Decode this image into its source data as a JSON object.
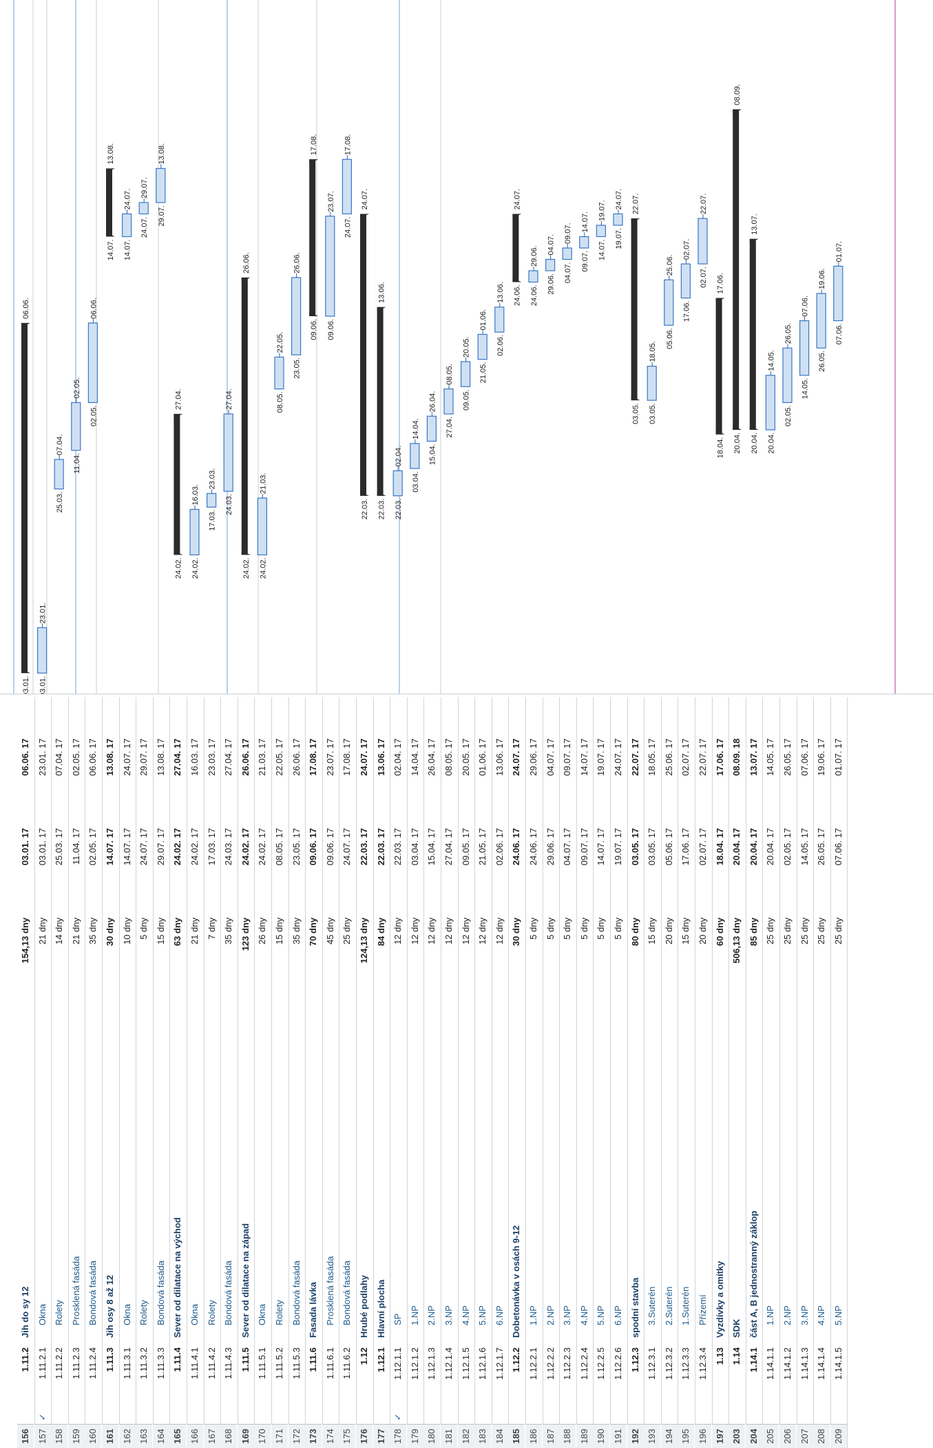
{
  "rows": [
    {
      "id": "156",
      "wbs": "1.11.2",
      "name": "Jih do sy 12",
      "dur": "154,13 dny",
      "start": "03.01. 17",
      "end": "06.06. 17",
      "bold": true,
      "bar_start": "03.01.",
      "bar_end": "06.06."
    },
    {
      "id": "157",
      "wbs": "1.11.2.1",
      "name": "Okna",
      "dur": "21 dny",
      "start": "03.01. 17",
      "end": "23.01. 17",
      "bold": false,
      "bar_start": "03.01.",
      "bar_end": "23.01.",
      "check": "✓"
    },
    {
      "id": "158",
      "wbs": "1.11.2.2",
      "name": "Rolety",
      "dur": "14 dny",
      "start": "25.03. 17",
      "end": "07.04. 17",
      "bold": false,
      "bar_start": "25.03.",
      "bar_end": "07.04."
    },
    {
      "id": "159",
      "wbs": "1.11.2.3",
      "name": "Prosklená fasáda",
      "dur": "21 dny",
      "start": "11.04. 17",
      "end": "02.05. 17",
      "bold": false,
      "bar_start": "11.04.",
      "bar_end": "02.05."
    },
    {
      "id": "160",
      "wbs": "1.11.2.4",
      "name": "Bondová fasáda",
      "dur": "35 dny",
      "start": "02.05. 17",
      "end": "06.06. 17",
      "bold": false,
      "bar_start": "02.05.",
      "bar_end": "06.06."
    },
    {
      "id": "161",
      "wbs": "1.11.3",
      "name": "Jih osy 8 až 12",
      "dur": "30 dny",
      "start": "14.07. 17",
      "end": "13.08. 17",
      "bold": true,
      "bar_start": "14.07.",
      "bar_end": "13.08."
    },
    {
      "id": "162",
      "wbs": "1.11.3.1",
      "name": "Okna",
      "dur": "10 dny",
      "start": "14.07. 17",
      "end": "24.07. 17",
      "bold": false,
      "bar_start": "14.07.",
      "bar_end": "24.07."
    },
    {
      "id": "163",
      "wbs": "1.11.3.2",
      "name": "Rolety",
      "dur": "5 dny",
      "start": "24.07. 17",
      "end": "29.07. 17",
      "bold": false,
      "bar_start": "24.07.",
      "bar_end": "29.07."
    },
    {
      "id": "164",
      "wbs": "1.11.3.3",
      "name": "Bondová fasáda",
      "dur": "15 dny",
      "start": "29.07. 17",
      "end": "13.08. 17",
      "bold": false,
      "bar_start": "29.07.",
      "bar_end": "13.08."
    },
    {
      "id": "165",
      "wbs": "1.11.4",
      "name": "Sever od dilatace na východ",
      "dur": "63 dny",
      "start": "24.02. 17",
      "end": "27.04. 17",
      "bold": true,
      "bar_start": "24.02.",
      "bar_end": "27.04."
    },
    {
      "id": "166",
      "wbs": "1.11.4.1",
      "name": "Okna",
      "dur": "21 dny",
      "start": "24.02. 17",
      "end": "16.03. 17",
      "bold": false,
      "bar_start": "24.02.",
      "bar_end": "16.03."
    },
    {
      "id": "167",
      "wbs": "1.11.4.2",
      "name": "Rolety",
      "dur": "7 dny",
      "start": "17.03. 17",
      "end": "23.03. 17",
      "bold": false,
      "bar_start": "17.03.",
      "bar_end": "23.03."
    },
    {
      "id": "168",
      "wbs": "1.11.4.3",
      "name": "Bondová fasáda",
      "dur": "35 dny",
      "start": "24.03. 17",
      "end": "27.04. 17",
      "bold": false,
      "bar_start": "24.03.",
      "bar_end": "27.04."
    },
    {
      "id": "169",
      "wbs": "1.11.5",
      "name": "Sever od dilatace na západ",
      "dur": "123 dny",
      "start": "24.02. 17",
      "end": "26.06. 17",
      "bold": true,
      "bar_start": "24.02.",
      "bar_end": "26.06."
    },
    {
      "id": "170",
      "wbs": "1.11.5.1",
      "name": "Okna",
      "dur": "26 dny",
      "start": "24.02. 17",
      "end": "21.03. 17",
      "bold": false,
      "bar_start": "24.02.",
      "bar_end": "21.03."
    },
    {
      "id": "171",
      "wbs": "1.11.5.2",
      "name": "Rolety",
      "dur": "15 dny",
      "start": "08.05. 17",
      "end": "22.05. 17",
      "bold": false,
      "bar_start": "08.05.",
      "bar_end": "22.05."
    },
    {
      "id": "172",
      "wbs": "1.11.5.3",
      "name": "Bondová fasáda",
      "dur": "35 dny",
      "start": "23.05. 17",
      "end": "26.06. 17",
      "bold": false,
      "bar_start": "23.05.",
      "bar_end": "26.06."
    },
    {
      "id": "173",
      "wbs": "1.11.6",
      "name": "Fasada lávka",
      "dur": "70 dny",
      "start": "09.06. 17",
      "end": "17.08. 17",
      "bold": true,
      "bar_start": "09.06.",
      "bar_end": "17.08."
    },
    {
      "id": "174",
      "wbs": "1.11.6.1",
      "name": "Prosklená fasáda",
      "dur": "45 dny",
      "start": "09.06. 17",
      "end": "23.07. 17",
      "bold": false,
      "bar_start": "09.06.",
      "bar_end": "23.07."
    },
    {
      "id": "175",
      "wbs": "1.11.6.2",
      "name": "Bondová fasáda",
      "dur": "25 dny",
      "start": "24.07. 17",
      "end": "17.08. 17",
      "bold": false,
      "bar_start": "24.07.",
      "bar_end": "17.08."
    },
    {
      "id": "176",
      "wbs": "1.12",
      "name": "Hrubé podlahy",
      "dur": "124,13 dny",
      "start": "22.03. 17",
      "end": "24.07. 17",
      "bold": true,
      "bar_start": "22.03.",
      "bar_end": "24.07."
    },
    {
      "id": "177",
      "wbs": "1.12.1",
      "name": "Hlavní plocha",
      "dur": "84 dny",
      "start": "22.03. 17",
      "end": "13.06. 17",
      "bold": true,
      "bar_start": "22.03.",
      "bar_end": "13.06."
    },
    {
      "id": "178",
      "wbs": "1.12.1.1",
      "name": "SP",
      "dur": "12 dny",
      "start": "22.03. 17",
      "end": "02.04. 17",
      "bold": false,
      "bar_start": "22.03.",
      "bar_end": "02.04.",
      "check": "✓"
    },
    {
      "id": "179",
      "wbs": "1.12.1.2",
      "name": "1.NP",
      "dur": "12 dny",
      "start": "03.04. 17",
      "end": "14.04. 17",
      "bold": false,
      "bar_start": "03.04.",
      "bar_end": "14.04."
    },
    {
      "id": "180",
      "wbs": "1.12.1.3",
      "name": "2.NP",
      "dur": "12 dny",
      "start": "15.04. 17",
      "end": "26.04. 17",
      "bold": false,
      "bar_start": "15.04.",
      "bar_end": "26.04."
    },
    {
      "id": "181",
      "wbs": "1.12.1.4",
      "name": "3.NP",
      "dur": "12 dny",
      "start": "27.04. 17",
      "end": "08.05. 17",
      "bold": false,
      "bar_start": "27.04.",
      "bar_end": "08.05."
    },
    {
      "id": "182",
      "wbs": "1.12.1.5",
      "name": "4.NP",
      "dur": "12 dny",
      "start": "09.05. 17",
      "end": "20.05. 17",
      "bold": false,
      "bar_start": "09.05.",
      "bar_end": "20.05."
    },
    {
      "id": "183",
      "wbs": "1.12.1.6",
      "name": "5.NP",
      "dur": "12 dny",
      "start": "21.05. 17",
      "end": "01.06. 17",
      "bold": false,
      "bar_start": "21.05.",
      "bar_end": "01.06."
    },
    {
      "id": "184",
      "wbs": "1.12.1.7",
      "name": "6.NP",
      "dur": "12 dny",
      "start": "02.06. 17",
      "end": "13.06. 17",
      "bold": false,
      "bar_start": "02.06.",
      "bar_end": "13.06."
    },
    {
      "id": "185",
      "wbs": "1.12.2",
      "name": "Dobetonávka v osách 9-12",
      "dur": "30 dny",
      "start": "24.06. 17",
      "end": "24.07. 17",
      "bold": true,
      "bar_start": "24.06.",
      "bar_end": "24.07."
    },
    {
      "id": "186",
      "wbs": "1.12.2.1",
      "name": "1.NP",
      "dur": "5 dny",
      "start": "24.06. 17",
      "end": "29.06. 17",
      "bold": false,
      "bar_start": "24.06.",
      "bar_end": "29.06."
    },
    {
      "id": "187",
      "wbs": "1.12.2.2",
      "name": "2.NP",
      "dur": "5 dny",
      "start": "29.06. 17",
      "end": "04.07. 17",
      "bold": false,
      "bar_start": "29.06.",
      "bar_end": "04.07."
    },
    {
      "id": "188",
      "wbs": "1.12.2.3",
      "name": "3.NP",
      "dur": "5 dny",
      "start": "04.07. 17",
      "end": "09.07. 17",
      "bold": false,
      "bar_start": "04.07.",
      "bar_end": "09.07."
    },
    {
      "id": "189",
      "wbs": "1.12.2.4",
      "name": "4.NP",
      "dur": "5 dny",
      "start": "09.07. 17",
      "end": "14.07. 17",
      "bold": false,
      "bar_start": "09.07.",
      "bar_end": "14.07."
    },
    {
      "id": "190",
      "wbs": "1.12.2.5",
      "name": "5.NP",
      "dur": "5 dny",
      "start": "14.07. 17",
      "end": "19.07. 17",
      "bold": false,
      "bar_start": "14.07.",
      "bar_end": "19.07."
    },
    {
      "id": "191",
      "wbs": "1.12.2.6",
      "name": "6.NP",
      "dur": "5 dny",
      "start": "19.07. 17",
      "end": "24.07. 17",
      "bold": false,
      "bar_start": "19.07.",
      "bar_end": "24.07."
    },
    {
      "id": "192",
      "wbs": "1.12.3",
      "name": "spodní stavba",
      "dur": "80 dny",
      "start": "03.05. 17",
      "end": "22.07. 17",
      "bold": true,
      "bar_start": "03.05.",
      "bar_end": "22.07."
    },
    {
      "id": "193",
      "wbs": "1.12.3.1",
      "name": "3.Suterén",
      "dur": "15 dny",
      "start": "03.05. 17",
      "end": "18.05. 17",
      "bold": false,
      "bar_start": "03.05.",
      "bar_end": "18.05."
    },
    {
      "id": "194",
      "wbs": "1.12.3.2",
      "name": "2.Suterén",
      "dur": "20 dny",
      "start": "05.06. 17",
      "end": "25.06. 17",
      "bold": false,
      "bar_start": "05.06.",
      "bar_end": "25.06."
    },
    {
      "id": "195",
      "wbs": "1.12.3.3",
      "name": "1.Suterén",
      "dur": "15 dny",
      "start": "17.06. 17",
      "end": "02.07. 17",
      "bold": false,
      "bar_start": "17.06.",
      "bar_end": "02.07."
    },
    {
      "id": "196",
      "wbs": "1.12.3.4",
      "name": "Přízemí",
      "dur": "20 dny",
      "start": "02.07. 17",
      "end": "22.07. 17",
      "bold": false,
      "bar_start": "02.07.",
      "bar_end": "22.07."
    },
    {
      "id": "197",
      "wbs": "1.13",
      "name": "Vyzdívky a omítky",
      "dur": "60 dny",
      "start": "18.04. 17",
      "end": "17.06. 17",
      "bold": true,
      "bar_start": "18.04.",
      "bar_end": "17.06."
    },
    {
      "id": "203",
      "wbs": "1.14",
      "name": "SDK",
      "dur": "506,13 dny",
      "start": "20.04. 17",
      "end": "08.09. 18",
      "bold": true,
      "bar_start": "20.04.",
      "bar_end": "08.09."
    },
    {
      "id": "204",
      "wbs": "1.14.1",
      "name": "část A, B jednostranný záklop",
      "dur": "85 dny",
      "start": "20.04. 17",
      "end": "13.07. 17",
      "bold": true,
      "bar_start": "20.04.",
      "bar_end": "13.07."
    },
    {
      "id": "205",
      "wbs": "1.14.1.1",
      "name": "1.NP",
      "dur": "25 dny",
      "start": "20.04. 17",
      "end": "14.05. 17",
      "bold": false,
      "bar_start": "20.04.",
      "bar_end": "14.05."
    },
    {
      "id": "206",
      "wbs": "1.14.1.2",
      "name": "2.NP",
      "dur": "25 dny",
      "start": "02.05. 17",
      "end": "26.05. 17",
      "bold": false,
      "bar_start": "02.05.",
      "bar_end": "26.05."
    },
    {
      "id": "207",
      "wbs": "1.14.1.3",
      "name": "3.NP",
      "dur": "25 dny",
      "start": "14.05. 17",
      "end": "07.06. 17",
      "bold": false,
      "bar_start": "14.05.",
      "bar_end": "07.06."
    },
    {
      "id": "208",
      "wbs": "1.14.1.4",
      "name": "4.NP",
      "dur": "25 dny",
      "start": "26.05. 17",
      "end": "19.06. 17",
      "bold": false,
      "bar_start": "26.05.",
      "bar_end": "19.06."
    },
    {
      "id": "209",
      "wbs": "1.14.1.5",
      "name": "5.NP",
      "dur": "25 dny",
      "start": "07.06. 17",
      "end": "01.07. 17",
      "bold": false,
      "bar_start": "07.06.",
      "bar_end": "01.07."
    }
  ],
  "colors": {
    "summary": "#2b2b2b",
    "task_fill": "#cfe0f3",
    "task_border": "#3a78c2",
    "link": "#2a62a6",
    "gridline": "#c9cfd6",
    "accent_line": "#b03a8a"
  }
}
